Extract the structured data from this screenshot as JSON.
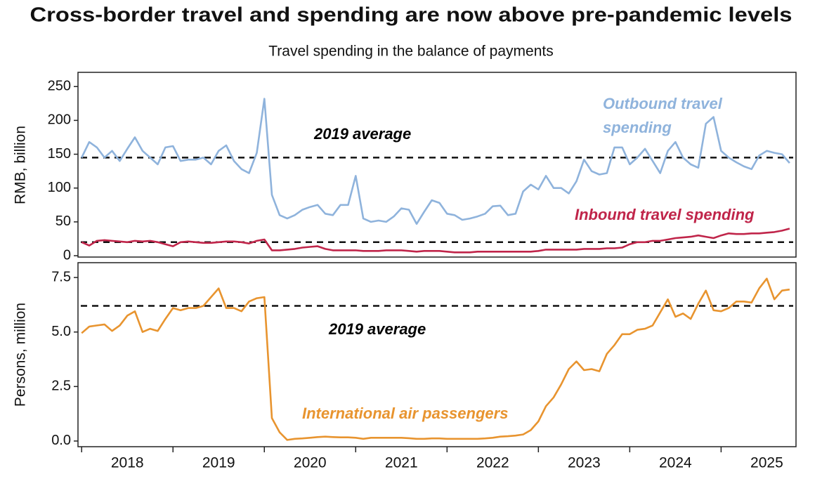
{
  "title": "Cross-border travel and spending are now above pre-pandemic levels",
  "subtitle": "Travel spending in the balance of payments",
  "chart_data": [
    {
      "type": "line",
      "y_label": "RMB, billion",
      "xlim": [
        2017.96,
        2025.82
      ],
      "ylim": [
        -2,
        271
      ],
      "yticks": [
        0,
        50,
        100,
        150,
        200,
        250
      ],
      "x": [
        2018,
        2018.083,
        2018.167,
        2018.25,
        2018.333,
        2018.417,
        2018.5,
        2018.583,
        2018.667,
        2018.75,
        2018.833,
        2018.917,
        2019,
        2019.083,
        2019.167,
        2019.25,
        2019.333,
        2019.417,
        2019.5,
        2019.583,
        2019.667,
        2019.75,
        2019.833,
        2019.917,
        2020,
        2020.083,
        2020.167,
        2020.25,
        2020.333,
        2020.417,
        2020.5,
        2020.583,
        2020.667,
        2020.75,
        2020.833,
        2020.917,
        2021,
        2021.083,
        2021.167,
        2021.25,
        2021.333,
        2021.417,
        2021.5,
        2021.583,
        2021.667,
        2021.75,
        2021.833,
        2021.917,
        2022,
        2022.083,
        2022.167,
        2022.25,
        2022.333,
        2022.417,
        2022.5,
        2022.583,
        2022.667,
        2022.75,
        2022.833,
        2022.917,
        2023,
        2023.083,
        2023.167,
        2023.25,
        2023.333,
        2023.417,
        2023.5,
        2023.583,
        2023.667,
        2023.75,
        2023.833,
        2023.917,
        2024,
        2024.083,
        2024.167,
        2024.25,
        2024.333,
        2024.417,
        2024.5,
        2024.583,
        2024.667,
        2024.75,
        2024.833,
        2024.917,
        2025,
        2025.083,
        2025.167,
        2025.25,
        2025.333,
        2025.417,
        2025.5,
        2025.583,
        2025.667,
        2025.75
      ],
      "series": [
        {
          "name": "Outbound travel spending",
          "color": "#8fb3dc",
          "values": [
            145,
            168,
            160,
            145,
            155,
            140,
            158,
            175,
            155,
            145,
            135,
            160,
            162,
            140,
            142,
            142,
            145,
            135,
            155,
            163,
            140,
            128,
            122,
            152,
            232,
            90,
            60,
            55,
            60,
            68,
            72,
            75,
            62,
            60,
            75,
            75,
            118,
            55,
            50,
            52,
            50,
            58,
            70,
            68,
            47,
            65,
            82,
            78,
            62,
            60,
            53,
            55,
            58,
            62,
            73,
            74,
            60,
            62,
            95,
            105,
            98,
            118,
            100,
            100,
            92,
            110,
            142,
            125,
            120,
            122,
            160,
            160,
            135,
            145,
            158,
            140,
            122,
            155,
            168,
            145,
            135,
            130,
            195,
            205,
            155,
            145,
            138,
            132,
            128,
            148,
            155,
            152,
            150,
            137
          ]
        },
        {
          "name": "Inbound travel spending",
          "color": "#c0254a",
          "values": [
            20,
            15,
            22,
            23,
            22,
            21,
            20,
            22,
            21,
            22,
            20,
            17,
            14,
            20,
            21,
            20,
            19,
            19,
            20,
            21,
            21,
            20,
            18,
            22,
            24,
            8,
            8,
            9,
            10,
            12,
            13,
            14,
            10,
            8,
            8,
            8,
            8,
            7,
            7,
            7,
            8,
            8,
            8,
            7,
            6,
            7,
            7,
            7,
            6,
            5,
            5,
            5,
            6,
            6,
            6,
            6,
            6,
            6,
            6,
            6,
            7,
            9,
            9,
            9,
            9,
            9,
            10,
            10,
            10,
            11,
            11,
            12,
            17,
            20,
            20,
            22,
            22,
            24,
            26,
            27,
            28,
            30,
            28,
            26,
            30,
            33,
            32,
            32,
            33,
            33,
            34,
            35,
            37,
            40
          ]
        }
      ],
      "reference_lines": [
        {
          "value": 145,
          "label": "2019 average"
        },
        {
          "value": 20
        }
      ]
    },
    {
      "type": "line",
      "y_label": "Persons, million",
      "xlim": [
        2017.96,
        2025.82
      ],
      "ylim": [
        -0.26,
        8.18
      ],
      "yticks": [
        {
          "value": 0,
          "label": "0.0"
        },
        2.5,
        {
          "value": 5,
          "label": "5.0"
        },
        7.5
      ],
      "xticks": [
        {
          "value": 2018.5,
          "label": "2018"
        },
        {
          "value": 2019.5,
          "label": "2019"
        },
        {
          "value": 2020.5,
          "label": "2020"
        },
        {
          "value": 2021.5,
          "label": "2021"
        },
        {
          "value": 2022.5,
          "label": "2022"
        },
        {
          "value": 2023.5,
          "label": "2023"
        },
        {
          "value": 2024.5,
          "label": "2024"
        },
        {
          "value": 2025.5,
          "label": "2025"
        }
      ],
      "x": [
        2018,
        2018.083,
        2018.167,
        2018.25,
        2018.333,
        2018.417,
        2018.5,
        2018.583,
        2018.667,
        2018.75,
        2018.833,
        2018.917,
        2019,
        2019.083,
        2019.167,
        2019.25,
        2019.333,
        2019.417,
        2019.5,
        2019.583,
        2019.667,
        2019.75,
        2019.833,
        2019.917,
        2020,
        2020.083,
        2020.167,
        2020.25,
        2020.333,
        2020.417,
        2020.5,
        2020.583,
        2020.667,
        2020.75,
        2020.833,
        2020.917,
        2021,
        2021.083,
        2021.167,
        2021.25,
        2021.333,
        2021.417,
        2021.5,
        2021.583,
        2021.667,
        2021.75,
        2021.833,
        2021.917,
        2022,
        2022.083,
        2022.167,
        2022.25,
        2022.333,
        2022.417,
        2022.5,
        2022.583,
        2022.667,
        2022.75,
        2022.833,
        2022.917,
        2023,
        2023.083,
        2023.167,
        2023.25,
        2023.333,
        2023.417,
        2023.5,
        2023.583,
        2023.667,
        2023.75,
        2023.833,
        2023.917,
        2024,
        2024.083,
        2024.167,
        2024.25,
        2024.333,
        2024.417,
        2024.5,
        2024.583,
        2024.667,
        2024.75,
        2024.833,
        2024.917,
        2025,
        2025.083,
        2025.167,
        2025.25,
        2025.333,
        2025.417,
        2025.5,
        2025.583,
        2025.667,
        2025.75
      ],
      "series": [
        {
          "name": "International air passengers",
          "color": "#e8942f",
          "values": [
            4.95,
            5.25,
            5.3,
            5.35,
            5.05,
            5.3,
            5.75,
            5.95,
            5.0,
            5.15,
            5.05,
            5.6,
            6.1,
            6.0,
            6.1,
            6.1,
            6.2,
            6.6,
            7.0,
            6.1,
            6.1,
            5.95,
            6.4,
            6.55,
            6.6,
            1.05,
            0.4,
            0.05,
            0.1,
            0.12,
            0.15,
            0.18,
            0.2,
            0.18,
            0.17,
            0.17,
            0.15,
            0.1,
            0.15,
            0.15,
            0.15,
            0.15,
            0.15,
            0.13,
            0.1,
            0.1,
            0.12,
            0.12,
            0.1,
            0.1,
            0.1,
            0.1,
            0.1,
            0.12,
            0.15,
            0.2,
            0.22,
            0.25,
            0.3,
            0.5,
            0.9,
            1.6,
            2.0,
            2.6,
            3.3,
            3.65,
            3.25,
            3.3,
            3.2,
            4.0,
            4.4,
            4.9,
            4.9,
            5.1,
            5.15,
            5.3,
            5.9,
            6.5,
            5.7,
            5.85,
            5.6,
            6.3,
            6.9,
            6.0,
            5.95,
            6.1,
            6.4,
            6.4,
            6.35,
            7.0,
            7.45,
            6.5,
            6.9,
            6.95
          ]
        }
      ],
      "reference_lines": [
        {
          "value": 6.2,
          "label": "2019 average"
        }
      ]
    }
  ]
}
